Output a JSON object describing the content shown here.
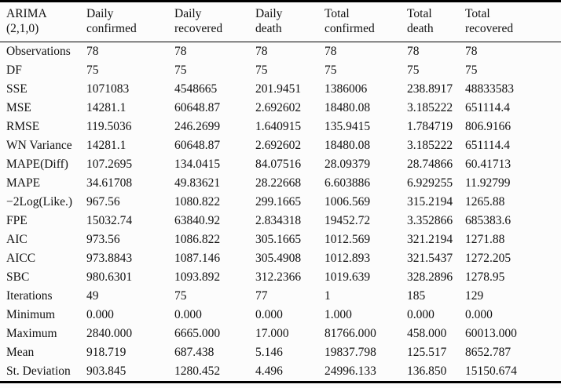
{
  "table": {
    "title_cell": {
      "line1": "ARIMA",
      "line2": "(2,1,0)"
    },
    "columns": [
      {
        "line1": "Daily",
        "line2": "confirmed"
      },
      {
        "line1": "Daily",
        "line2": "recovered"
      },
      {
        "line1": "Daily",
        "line2": "death"
      },
      {
        "line1": "Total",
        "line2": "confirmed"
      },
      {
        "line1": "Total",
        "line2": "death"
      },
      {
        "line1": "Total",
        "line2": "recovered"
      }
    ],
    "rows": [
      {
        "label": "Observations",
        "values": [
          "78",
          "78",
          "78",
          "78",
          "78",
          "78"
        ]
      },
      {
        "label": "DF",
        "values": [
          "75",
          "75",
          "75",
          "75",
          "75",
          "75"
        ]
      },
      {
        "label": "SSE",
        "values": [
          "1071083",
          "4548665",
          "201.9451",
          "1386006",
          "238.8917",
          "48833583"
        ]
      },
      {
        "label": "MSE",
        "values": [
          "14281.1",
          "60648.87",
          "2.692602",
          "18480.08",
          "3.185222",
          "651114.4"
        ]
      },
      {
        "label": "RMSE",
        "values": [
          "119.5036",
          "246.2699",
          "1.640915",
          "135.9415",
          "1.784719",
          "806.9166"
        ]
      },
      {
        "label": "WN Variance",
        "values": [
          "14281.1",
          "60648.87",
          "2.692602",
          "18480.08",
          "3.185222",
          "651114.4"
        ]
      },
      {
        "label": "MAPE(Diff)",
        "values": [
          "107.2695",
          "134.0415",
          "84.07516",
          "28.09379",
          "28.74866",
          "60.41713"
        ]
      },
      {
        "label": "MAPE",
        "values": [
          "34.61708",
          "49.83621",
          "28.22668",
          "6.603886",
          "6.929255",
          "11.92799"
        ]
      },
      {
        "label": "−2Log(Like.)",
        "values": [
          "967.56",
          "1080.822",
          "299.1665",
          "1006.569",
          "315.2194",
          "1265.88"
        ]
      },
      {
        "label": "FPE",
        "values": [
          "15032.74",
          "63840.92",
          "2.834318",
          "19452.72",
          "3.352866",
          "685383.6"
        ]
      },
      {
        "label": "AIC",
        "values": [
          "973.56",
          "1086.822",
          "305.1665",
          "1012.569",
          "321.2194",
          "1271.88"
        ]
      },
      {
        "label": "AICC",
        "values": [
          "973.8843",
          "1087.146",
          "305.4908",
          "1012.893",
          "321.5437",
          "1272.205"
        ]
      },
      {
        "label": "SBC",
        "values": [
          "980.6301",
          "1093.892",
          "312.2366",
          "1019.639",
          "328.2896",
          "1278.95"
        ]
      },
      {
        "label": "Iterations",
        "values": [
          "49",
          "75",
          "77",
          "1",
          "185",
          "129"
        ]
      },
      {
        "label": "Minimum",
        "values": [
          "0.000",
          "0.000",
          "0.000",
          "1.000",
          "0.000",
          "0.000"
        ]
      },
      {
        "label": "Maximum",
        "values": [
          "2840.000",
          "6665.000",
          "17.000",
          "81766.000",
          "458.000",
          "60013.000"
        ]
      },
      {
        "label": "Mean",
        "values": [
          "918.719",
          "687.438",
          "5.146",
          "19837.798",
          "125.517",
          "8652.787"
        ]
      },
      {
        "label": "St. Deviation",
        "values": [
          "903.845",
          "1280.452",
          "4.496",
          "24996.133",
          "136.850",
          "15150.674"
        ]
      }
    ]
  },
  "colors": {
    "text": "#111111",
    "rule": "#000000",
    "background": "#fcfcfc"
  }
}
